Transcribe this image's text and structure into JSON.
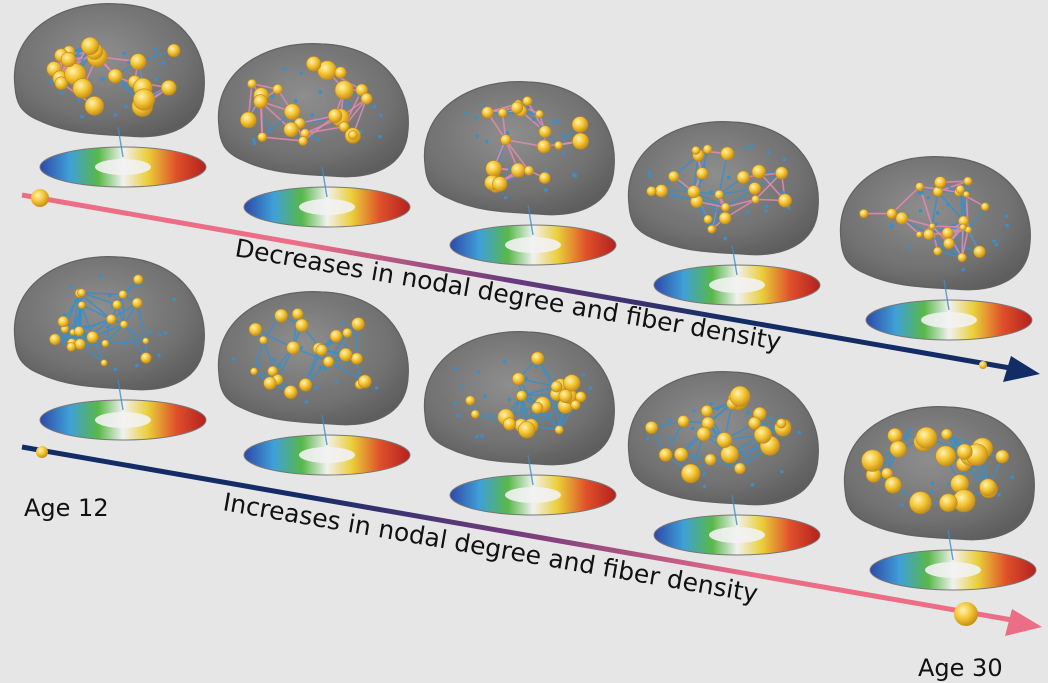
{
  "colors": {
    "background": "#e6e6e6",
    "brain_shell": "#6f6f6f",
    "node": "#f3c332",
    "edge_pink": "#e889b3",
    "edge_blue": "#3a8fc9",
    "arrow_pink": "#ec6d86",
    "arrow_navy": "#132c66"
  },
  "labels": {
    "top_trend": "Decreases in nodal degree and fiber density",
    "bottom_trend": "Increases in nodal degree and fiber density",
    "age_start": "Age 12",
    "age_end": "Age 30"
  },
  "rows": [
    {
      "name": "decreasing-row",
      "node_scale": [
        1.0,
        0.85,
        0.72,
        0.6,
        0.5
      ]
    },
    {
      "name": "increasing-row",
      "node_scale": [
        0.5,
        0.62,
        0.78,
        0.92,
        1.08
      ]
    }
  ]
}
